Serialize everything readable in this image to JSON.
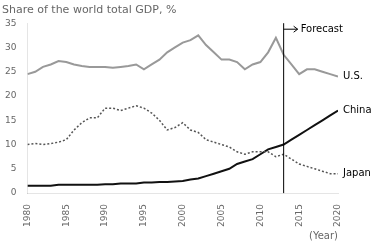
{
  "chart_data": {
    "type": "line",
    "title": "Share of the world total GDP, %",
    "xlabel": "(Year)",
    "x": [
      1980,
      1981,
      1982,
      1983,
      1984,
      1985,
      1986,
      1987,
      1988,
      1989,
      1990,
      1991,
      1992,
      1993,
      1994,
      1995,
      1996,
      1997,
      1998,
      1999,
      2000,
      2001,
      2002,
      2003,
      2004,
      2005,
      2006,
      2007,
      2008,
      2009,
      2010,
      2011,
      2012,
      2013,
      2014,
      2015,
      2016,
      2017,
      2018,
      2019,
      2020
    ],
    "series": [
      {
        "name": "U.S.",
        "color": "#999999",
        "line_style": "solid",
        "values": [
          24.5,
          25.0,
          26.0,
          26.5,
          27.2,
          27.0,
          26.5,
          26.2,
          26.0,
          26.0,
          26.0,
          25.8,
          26.0,
          26.2,
          26.5,
          25.5,
          26.5,
          27.5,
          29.0,
          30.0,
          31.0,
          31.5,
          32.5,
          30.5,
          29.0,
          27.5,
          27.5,
          27.0,
          25.5,
          26.5,
          27.0,
          29.0,
          32.0,
          28.5,
          26.5,
          24.5,
          25.5,
          25.5,
          25.0,
          24.5,
          24.0
        ]
      },
      {
        "name": "Japan",
        "color": "#555555",
        "line_style": "dotted",
        "values": [
          10.0,
          10.2,
          10.0,
          10.2,
          10.5,
          11.0,
          13.0,
          14.5,
          15.5,
          15.5,
          17.5,
          17.5,
          17.0,
          17.5,
          18.0,
          17.5,
          16.5,
          15.0,
          13.0,
          13.5,
          14.5,
          13.0,
          12.5,
          11.0,
          10.5,
          10.0,
          9.5,
          8.5,
          8.0,
          8.5,
          8.5,
          8.5,
          7.5,
          8.0,
          7.0,
          6.0,
          5.5,
          5.0,
          4.5,
          4.0,
          4.0
        ]
      },
      {
        "name": "China",
        "color": "#111111",
        "line_style": "solid",
        "values": [
          1.5,
          1.5,
          1.5,
          1.5,
          1.7,
          1.7,
          1.7,
          1.7,
          1.7,
          1.7,
          1.8,
          1.8,
          2.0,
          2.0,
          2.0,
          2.2,
          2.2,
          2.3,
          2.3,
          2.4,
          2.5,
          2.8,
          3.0,
          3.5,
          4.0,
          4.5,
          5.0,
          6.0,
          6.5,
          7.0,
          8.0,
          9.0,
          9.5,
          10.0,
          11.0,
          12.0,
          13.0,
          14.0,
          15.0,
          16.0,
          17.0
        ]
      }
    ],
    "annotations": [
      {
        "text": "Forecast",
        "x": 2013
      }
    ],
    "xlim": [
      1980,
      2020
    ],
    "xticks": [
      1980,
      1985,
      1990,
      1995,
      2000,
      2005,
      2010,
      2015,
      2020
    ],
    "ylim": [
      0,
      35
    ],
    "yticks": [
      0,
      5,
      10,
      15,
      20,
      25,
      30,
      35
    ],
    "grid": false
  }
}
